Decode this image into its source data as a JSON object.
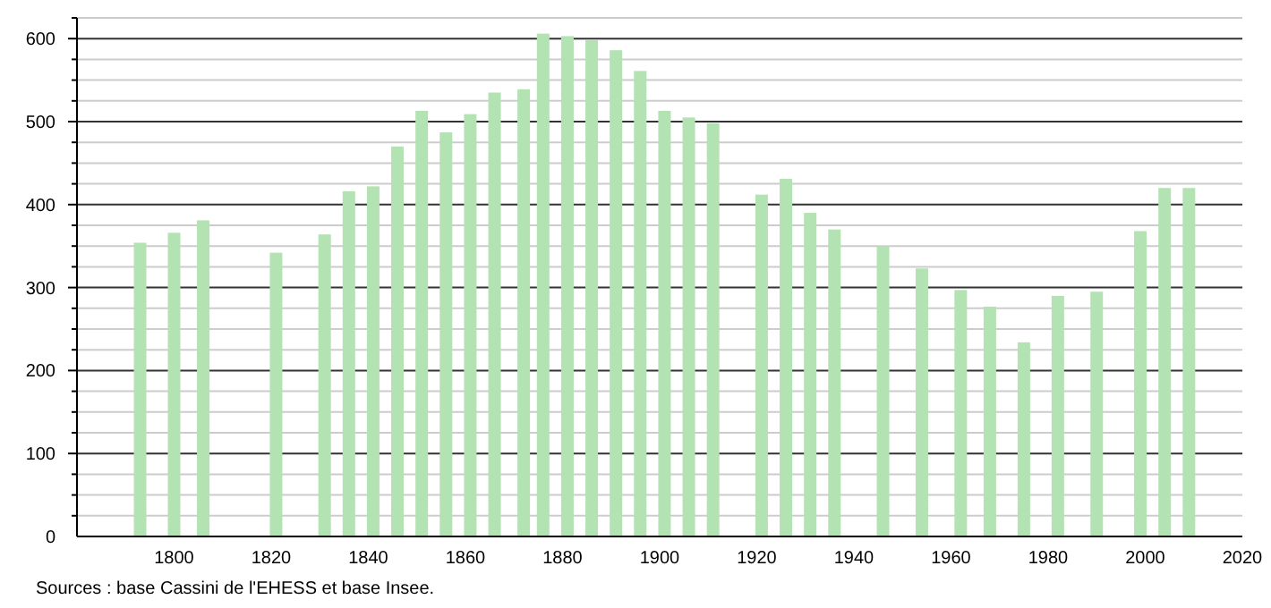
{
  "chart_data": {
    "type": "bar",
    "color": "#b3e2b3",
    "x": [
      1793,
      1800,
      1806,
      1821,
      1831,
      1836,
      1841,
      1846,
      1851,
      1856,
      1861,
      1866,
      1872,
      1876,
      1881,
      1886,
      1891,
      1896,
      1901,
      1906,
      1911,
      1921,
      1926,
      1931,
      1936,
      1946,
      1954,
      1962,
      1968,
      1975,
      1982,
      1990,
      1999,
      2004,
      2009
    ],
    "values": [
      354,
      366,
      381,
      342,
      364,
      416,
      422,
      470,
      513,
      487,
      509,
      535,
      539,
      606,
      603,
      598,
      586,
      561,
      513,
      505,
      498,
      412,
      431,
      390,
      370,
      350,
      323,
      297,
      277,
      234,
      290,
      295,
      368,
      420,
      420
    ],
    "xlim": [
      1780,
      2020
    ],
    "xticks": [
      1800,
      1820,
      1840,
      1860,
      1880,
      1900,
      1920,
      1940,
      1960,
      1980,
      2000,
      2020
    ],
    "ylim": [
      0,
      625
    ],
    "yticks": [
      0,
      {
        "value": 25,
        "label": null
      },
      {
        "value": 50,
        "label": null
      },
      {
        "value": 75,
        "label": null
      },
      100,
      {
        "value": 125,
        "label": null
      },
      {
        "value": 150,
        "label": null
      },
      {
        "value": 175,
        "label": null
      },
      200,
      {
        "value": 225,
        "label": null
      },
      {
        "value": 250,
        "label": null
      },
      {
        "value": 275,
        "label": null
      },
      300,
      {
        "value": 325,
        "label": null
      },
      {
        "value": 350,
        "label": null
      },
      {
        "value": 375,
        "label": null
      },
      400,
      {
        "value": 425,
        "label": null
      },
      {
        "value": 450,
        "label": null
      },
      {
        "value": 475,
        "label": null
      },
      500,
      {
        "value": 525,
        "label": null
      },
      {
        "value": 550,
        "label": null
      },
      {
        "value": 575,
        "label": null
      },
      600,
      {
        "value": 625,
        "label": null
      }
    ],
    "grid": "y",
    "annotations": [
      "Sources : base Cassini de l'EHESS et base Insee."
    ]
  }
}
